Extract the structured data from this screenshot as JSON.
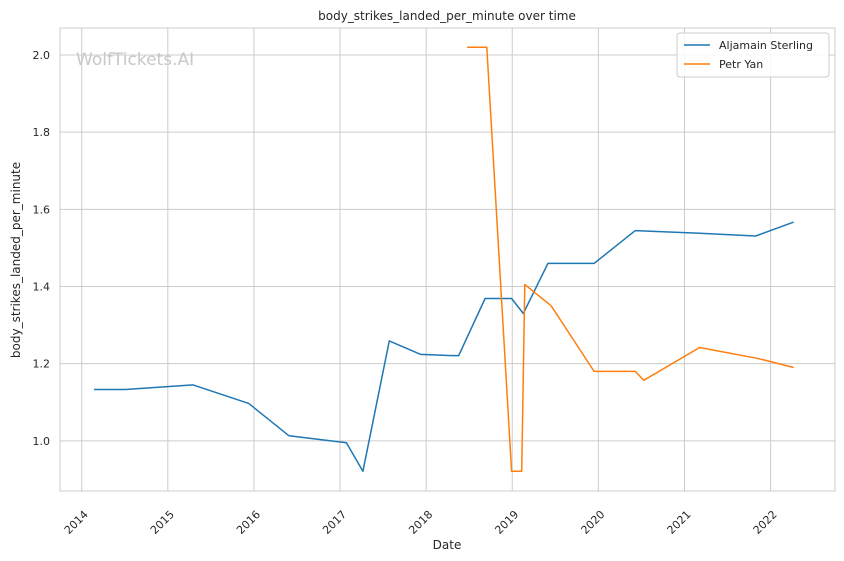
{
  "chart_data": {
    "type": "line",
    "title": "body_strikes_landed_per_minute over time",
    "xlabel": "Date",
    "ylabel": "body_strikes_landed_per_minute",
    "watermark": "WolfTickets.AI",
    "xlim": [
      "2013-10-01",
      "2022-10-01"
    ],
    "ylim": [
      0.87,
      2.07
    ],
    "x_ticks": [
      "2014",
      "2015",
      "2016",
      "2017",
      "2018",
      "2019",
      "2020",
      "2021",
      "2022"
    ],
    "y_ticks": [
      "1.0",
      "1.2",
      "1.4",
      "1.6",
      "1.8",
      "2.0"
    ],
    "grid": true,
    "legend_position": "top-right",
    "series": [
      {
        "name": "Aljamain Sterling",
        "color": "#1f77b4",
        "points": [
          [
            "2014-02-22",
            1.133
          ],
          [
            "2014-07-05",
            1.133
          ],
          [
            "2015-04-18",
            1.145
          ],
          [
            "2015-12-10",
            1.097
          ],
          [
            "2016-05-29",
            1.013
          ],
          [
            "2017-01-28",
            0.995
          ],
          [
            "2017-04-08",
            0.921
          ],
          [
            "2017-07-29",
            1.259
          ],
          [
            "2017-12-09",
            1.224
          ],
          [
            "2018-04-21",
            1.221
          ],
          [
            "2018-05-19",
            1.221
          ],
          [
            "2018-09-08",
            1.369
          ],
          [
            "2018-12-29",
            1.369
          ],
          [
            "2019-02-17",
            1.33
          ],
          [
            "2019-06-01",
            1.46
          ],
          [
            "2019-12-14",
            1.46
          ],
          [
            "2020-06-06",
            1.545
          ],
          [
            "2021-03-06",
            1.538
          ],
          [
            "2021-10-30",
            1.531
          ],
          [
            "2022-04-09",
            1.567
          ]
        ]
      },
      {
        "name": "Petr Yan",
        "color": "#ff7f0e",
        "points": [
          [
            "2018-06-23",
            2.02
          ],
          [
            "2018-09-15",
            2.02
          ],
          [
            "2018-12-29",
            0.921
          ],
          [
            "2019-02-10",
            0.921
          ],
          [
            "2019-02-23",
            1.405
          ],
          [
            "2019-06-15",
            1.35
          ],
          [
            "2019-12-14",
            1.18
          ],
          [
            "2020-06-06",
            1.18
          ],
          [
            "2020-07-12",
            1.157
          ],
          [
            "2021-03-06",
            1.242
          ],
          [
            "2021-11-13",
            1.213
          ],
          [
            "2022-04-09",
            1.19
          ]
        ]
      }
    ]
  }
}
